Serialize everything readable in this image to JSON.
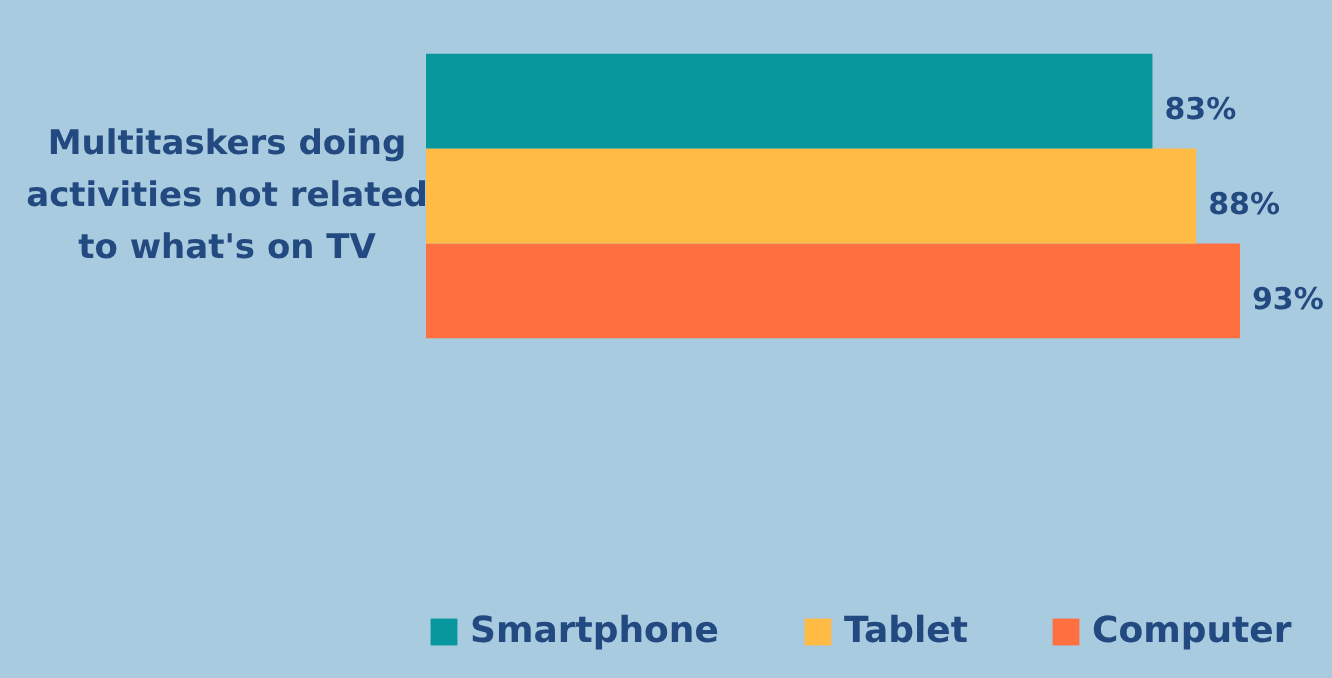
{
  "chart_data": {
    "type": "bar",
    "orientation": "horizontal",
    "categories": [
      "Multitaskers doing activities not related to what's on TV"
    ],
    "series": [
      {
        "name": "Computer",
        "color": "#ff6f3f",
        "values": [
          93
        ],
        "value_labels": [
          "93%"
        ]
      },
      {
        "name": "Tablet",
        "color": "#ffbb44",
        "values": [
          88
        ],
        "value_labels": [
          "88%"
        ]
      },
      {
        "name": "Smartphone",
        "color": "#08979c",
        "values": [
          83
        ],
        "value_labels": [
          "83%"
        ]
      }
    ],
    "tick_labels": "y",
    "legend": "bottom"
  }
}
